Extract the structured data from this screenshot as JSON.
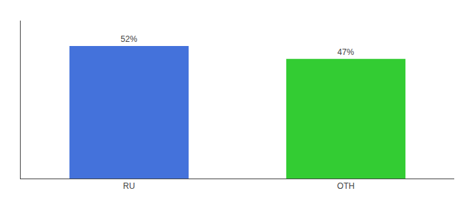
{
  "chart_data": {
    "type": "bar",
    "categories": [
      "RU",
      "OTH"
    ],
    "values": [
      52,
      47
    ],
    "value_labels": [
      "52%",
      "47%"
    ],
    "colors": [
      "#4472db",
      "#33cc33"
    ],
    "ylim": [
      0,
      62
    ],
    "data_labels": true,
    "tick_labels": "x",
    "grid": false
  }
}
